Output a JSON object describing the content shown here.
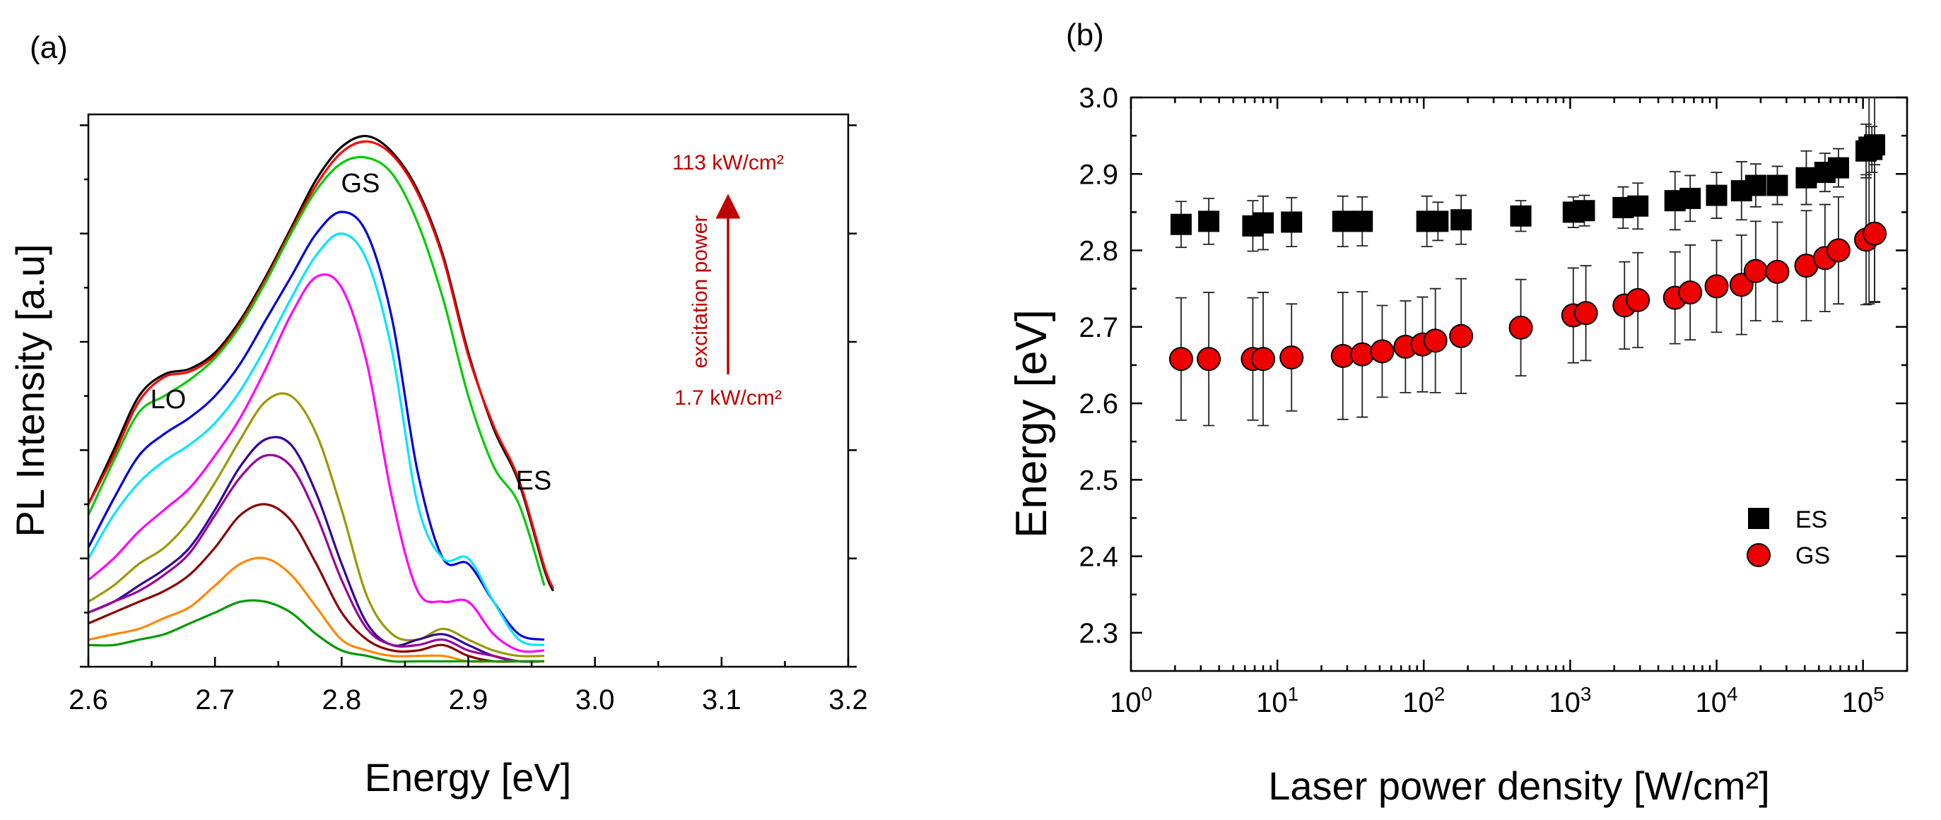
{
  "panel_a": {
    "label": "(a)",
    "annotations": {
      "lo": "LO",
      "gs": "GS",
      "es": "ES",
      "power_high": "113 kW/cm²",
      "power_low": "1.7 kW/cm²",
      "arrow_label": "excitation power"
    }
  },
  "panel_b": {
    "label": "(b)"
  },
  "colors": {
    "arrow": "#c00000",
    "gs_marker": "#ee0000",
    "es_marker": "#000000"
  },
  "chart_data": [
    {
      "type": "line",
      "xlabel": "Energy [eV]",
      "ylabel": "PL Intensity [a.u]",
      "xlim": [
        2.6,
        3.2
      ],
      "ylim": [
        0,
        1.02
      ],
      "xticks": [
        "2.6",
        "2.7",
        "2.8",
        "2.9",
        "3.0",
        "3.1",
        "3.2"
      ],
      "y_tick_labels_shown": false,
      "grid": false,
      "legend": "none",
      "series": [
        {
          "color": "#000000",
          "x": [
            2.6,
            2.62,
            2.64,
            2.66,
            2.68,
            2.7,
            2.72,
            2.74,
            2.76,
            2.78,
            2.8,
            2.82,
            2.84,
            2.86,
            2.88,
            2.9,
            2.92,
            2.94,
            2.96,
            2.967
          ],
          "y": [
            0.3,
            0.4,
            0.5,
            0.54,
            0.55,
            0.58,
            0.64,
            0.72,
            0.81,
            0.9,
            0.96,
            0.98,
            0.95,
            0.88,
            0.76,
            0.58,
            0.44,
            0.34,
            0.18,
            0.14
          ]
        },
        {
          "color": "#ff0000",
          "x": [
            2.6,
            2.62,
            2.64,
            2.66,
            2.68,
            2.7,
            2.72,
            2.74,
            2.76,
            2.78,
            2.8,
            2.82,
            2.84,
            2.86,
            2.88,
            2.9,
            2.92,
            2.94,
            2.96,
            2.967
          ],
          "y": [
            0.3,
            0.39,
            0.49,
            0.535,
            0.545,
            0.575,
            0.635,
            0.715,
            0.805,
            0.89,
            0.95,
            0.97,
            0.945,
            0.875,
            0.755,
            0.575,
            0.445,
            0.345,
            0.185,
            0.145
          ]
        },
        {
          "color": "#00cc00",
          "x": [
            2.6,
            2.62,
            2.64,
            2.66,
            2.68,
            2.7,
            2.72,
            2.74,
            2.76,
            2.78,
            2.8,
            2.82,
            2.84,
            2.86,
            2.88,
            2.9,
            2.92,
            2.94,
            2.96
          ],
          "y": [
            0.28,
            0.38,
            0.47,
            0.5,
            0.53,
            0.57,
            0.63,
            0.71,
            0.8,
            0.88,
            0.93,
            0.94,
            0.91,
            0.82,
            0.68,
            0.5,
            0.37,
            0.3,
            0.15
          ]
        },
        {
          "color": "#0000dd",
          "x": [
            2.6,
            2.62,
            2.64,
            2.66,
            2.68,
            2.7,
            2.72,
            2.74,
            2.76,
            2.78,
            2.8,
            2.82,
            2.84,
            2.86,
            2.88,
            2.9,
            2.92,
            2.94,
            2.96
          ],
          "y": [
            0.22,
            0.31,
            0.39,
            0.43,
            0.46,
            0.5,
            0.56,
            0.64,
            0.72,
            0.8,
            0.84,
            0.8,
            0.64,
            0.36,
            0.2,
            0.19,
            0.12,
            0.06,
            0.05
          ]
        },
        {
          "color": "#00e5ff",
          "x": [
            2.6,
            2.62,
            2.64,
            2.66,
            2.68,
            2.7,
            2.72,
            2.74,
            2.76,
            2.78,
            2.8,
            2.82,
            2.84,
            2.86,
            2.88,
            2.9,
            2.92,
            2.94,
            2.96
          ],
          "y": [
            0.2,
            0.28,
            0.34,
            0.38,
            0.41,
            0.45,
            0.51,
            0.59,
            0.68,
            0.76,
            0.8,
            0.75,
            0.58,
            0.3,
            0.2,
            0.2,
            0.12,
            0.05,
            0.04
          ]
        },
        {
          "color": "#ff00ff",
          "x": [
            2.6,
            2.62,
            2.64,
            2.66,
            2.68,
            2.7,
            2.72,
            2.74,
            2.76,
            2.78,
            2.8,
            2.82,
            2.84,
            2.86,
            2.88,
            2.9,
            2.92,
            2.94,
            2.96
          ],
          "y": [
            0.16,
            0.2,
            0.25,
            0.29,
            0.33,
            0.39,
            0.46,
            0.55,
            0.65,
            0.72,
            0.7,
            0.56,
            0.31,
            0.14,
            0.12,
            0.12,
            0.06,
            0.03,
            0.03
          ]
        },
        {
          "color": "#999900",
          "x": [
            2.6,
            2.62,
            2.64,
            2.66,
            2.68,
            2.7,
            2.72,
            2.74,
            2.76,
            2.78,
            2.8,
            2.82,
            2.84,
            2.86,
            2.88,
            2.9,
            2.92,
            2.94,
            2.96
          ],
          "y": [
            0.12,
            0.15,
            0.19,
            0.22,
            0.27,
            0.34,
            0.42,
            0.49,
            0.5,
            0.43,
            0.29,
            0.13,
            0.06,
            0.05,
            0.07,
            0.05,
            0.03,
            0.02,
            0.02
          ]
        },
        {
          "color": "#330099",
          "x": [
            2.6,
            2.62,
            2.64,
            2.66,
            2.68,
            2.7,
            2.72,
            2.74,
            2.76,
            2.78,
            2.8,
            2.82,
            2.84,
            2.86,
            2.88,
            2.9,
            2.92,
            2.94,
            2.96
          ],
          "y": [
            0.1,
            0.12,
            0.15,
            0.18,
            0.22,
            0.29,
            0.37,
            0.42,
            0.41,
            0.32,
            0.19,
            0.08,
            0.04,
            0.05,
            0.06,
            0.04,
            0.02,
            0.01,
            0.01
          ]
        },
        {
          "color": "#990099",
          "x": [
            2.6,
            2.62,
            2.64,
            2.66,
            2.68,
            2.7,
            2.72,
            2.74,
            2.76,
            2.78,
            2.8,
            2.82,
            2.84,
            2.86,
            2.88,
            2.9,
            2.92,
            2.94,
            2.96
          ],
          "y": [
            0.1,
            0.12,
            0.14,
            0.17,
            0.21,
            0.28,
            0.35,
            0.39,
            0.37,
            0.28,
            0.16,
            0.07,
            0.04,
            0.04,
            0.05,
            0.03,
            0.02,
            0.01,
            0.01
          ]
        },
        {
          "color": "#8b0000",
          "x": [
            2.6,
            2.62,
            2.64,
            2.66,
            2.68,
            2.7,
            2.72,
            2.74,
            2.76,
            2.78,
            2.8,
            2.82,
            2.84,
            2.86,
            2.88,
            2.9,
            2.92,
            2.94,
            2.96
          ],
          "y": [
            0.08,
            0.1,
            0.12,
            0.14,
            0.17,
            0.22,
            0.28,
            0.3,
            0.27,
            0.19,
            0.1,
            0.05,
            0.03,
            0.03,
            0.04,
            0.02,
            0.01,
            0.01,
            0.01
          ]
        },
        {
          "color": "#ff8800",
          "x": [
            2.6,
            2.62,
            2.64,
            2.66,
            2.68,
            2.7,
            2.72,
            2.74,
            2.76,
            2.78,
            2.8,
            2.82,
            2.84,
            2.86,
            2.88,
            2.9,
            2.92,
            2.94,
            2.96
          ],
          "y": [
            0.05,
            0.06,
            0.07,
            0.09,
            0.11,
            0.15,
            0.19,
            0.2,
            0.17,
            0.11,
            0.05,
            0.03,
            0.02,
            0.02,
            0.02,
            0.01,
            0.01,
            0.01,
            0.01
          ]
        },
        {
          "color": "#009900",
          "x": [
            2.6,
            2.62,
            2.64,
            2.66,
            2.68,
            2.7,
            2.72,
            2.74,
            2.76,
            2.78,
            2.8,
            2.82,
            2.84,
            2.86,
            2.88,
            2.9,
            2.92,
            2.94,
            2.96
          ],
          "y": [
            0.04,
            0.04,
            0.05,
            0.06,
            0.08,
            0.1,
            0.12,
            0.12,
            0.1,
            0.06,
            0.03,
            0.02,
            0.01,
            0.01,
            0.01,
            0.01,
            0.01,
            0.01,
            0.01
          ]
        }
      ]
    },
    {
      "type": "scatter",
      "xlabel": "Laser power density [W/cm²]",
      "ylabel": "Energy [eV]",
      "x_scale": "log",
      "xlim": [
        1,
        200000
      ],
      "ylim": [
        2.25,
        3.0
      ],
      "xticks": [
        1,
        10,
        100,
        1000,
        10000,
        100000
      ],
      "xtick_exponents": [
        "0",
        "1",
        "2",
        "3",
        "4",
        "5"
      ],
      "yticks": [
        "2.3",
        "2.4",
        "2.5",
        "2.6",
        "2.7",
        "2.8",
        "2.9",
        "3.0"
      ],
      "ytick_values": [
        2.3,
        2.4,
        2.5,
        2.6,
        2.7,
        2.8,
        2.9,
        3.0
      ],
      "grid": false,
      "legend": "center-right",
      "series": [
        {
          "name": "ES",
          "marker": "square",
          "color": "#000000",
          "x": [
            2.2,
            3.4,
            6.8,
            8,
            12.5,
            28,
            38,
            105,
            125,
            180,
            460,
            1050,
            1250,
            2300,
            2900,
            5200,
            6600,
            10000,
            14800,
            18500,
            26000,
            41000,
            55000,
            68000,
            105000,
            110000,
            115000,
            120000
          ],
          "y": [
            2.834,
            2.838,
            2.832,
            2.836,
            2.837,
            2.838,
            2.838,
            2.838,
            2.838,
            2.84,
            2.845,
            2.85,
            2.852,
            2.856,
            2.858,
            2.865,
            2.868,
            2.872,
            2.878,
            2.885,
            2.885,
            2.895,
            2.902,
            2.908,
            2.93,
            2.935,
            2.932,
            2.938
          ],
          "err": [
            0.03,
            0.03,
            0.033,
            0.035,
            0.032,
            0.033,
            0.032,
            0.033,
            0.025,
            0.032,
            0.02,
            0.02,
            0.02,
            0.027,
            0.03,
            0.038,
            0.03,
            0.03,
            0.038,
            0.028,
            0.025,
            0.035,
            0.025,
            0.025,
            0.035,
            0.205,
            0.03,
            0.205
          ]
        },
        {
          "name": "GS",
          "marker": "circle",
          "color": "#ee0000",
          "x": [
            2.2,
            3.4,
            6.8,
            8,
            12.5,
            28,
            38,
            52,
            75,
            98,
            120,
            180,
            460,
            1050,
            1280,
            2350,
            2900,
            5200,
            6600,
            10000,
            14800,
            18500,
            26000,
            41000,
            55000,
            68000,
            105000,
            120000
          ],
          "y": [
            2.658,
            2.658,
            2.658,
            2.658,
            2.66,
            2.662,
            2.664,
            2.668,
            2.674,
            2.677,
            2.682,
            2.688,
            2.699,
            2.715,
            2.718,
            2.728,
            2.735,
            2.738,
            2.745,
            2.753,
            2.755,
            2.773,
            2.772,
            2.78,
            2.79,
            2.8,
            2.814,
            2.822
          ],
          "err": [
            0.08,
            0.087,
            0.08,
            0.087,
            0.07,
            0.083,
            0.082,
            0.06,
            0.06,
            0.062,
            0.068,
            0.075,
            0.063,
            0.062,
            0.062,
            0.057,
            0.062,
            0.06,
            0.062,
            0.06,
            0.065,
            0.065,
            0.065,
            0.072,
            0.07,
            0.07,
            0.085,
            0.09
          ]
        }
      ]
    }
  ]
}
